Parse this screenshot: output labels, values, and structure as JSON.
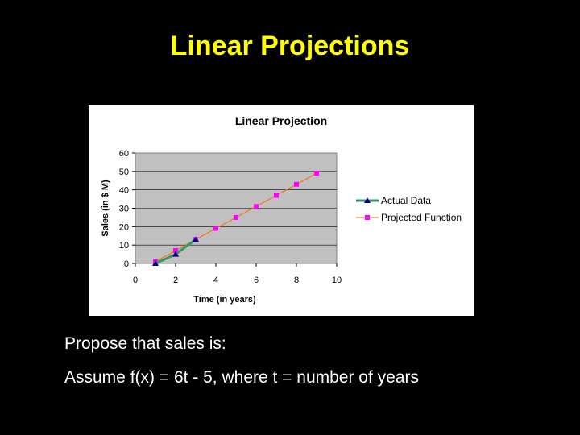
{
  "slide": {
    "title": "Linear Projections",
    "text_line1": "Propose that sales is:",
    "text_line2": "Assume f(x) = 6t - 5, where t = number of years"
  },
  "colors": {
    "background": "#000000",
    "title": "#ffff00",
    "plot_area": "#c0c0c0",
    "actual_line": "#339966",
    "actual_marker": "#000080",
    "projected_line": "#ff6600",
    "projected_marker": "#ff00ff"
  },
  "chart_data": {
    "type": "line",
    "title": "Linear Projection",
    "xlabel": "Time (in years)",
    "ylabel": "Sales (in $ M)",
    "xlim": [
      0,
      10
    ],
    "ylim": [
      0,
      60
    ],
    "x_ticks": [
      0,
      2,
      4,
      6,
      8,
      10
    ],
    "y_ticks": [
      0,
      10,
      20,
      30,
      40,
      50,
      60
    ],
    "grid": "horizontal",
    "legend": "right",
    "series": [
      {
        "name": "Actual Data",
        "marker": "triangle",
        "x": [
          1,
          2,
          3
        ],
        "y": [
          0,
          5,
          13
        ]
      },
      {
        "name": "Projected Function",
        "marker": "square",
        "x": [
          1,
          2,
          3,
          4,
          5,
          6,
          7,
          8,
          9
        ],
        "y": [
          1,
          7,
          13,
          19,
          25,
          31,
          37,
          43,
          49
        ]
      }
    ]
  }
}
